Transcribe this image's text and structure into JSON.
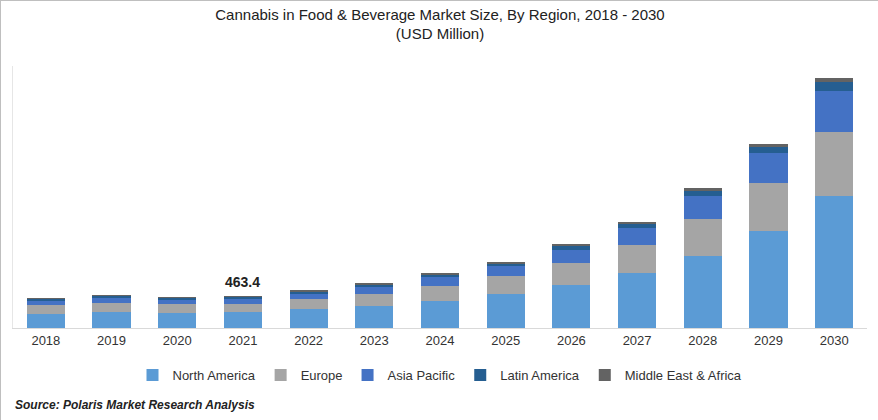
{
  "chart_data": {
    "type": "bar",
    "title": "Cannabis in Food & Beverage Market Size, By Region, 2018 - 2030",
    "subtitle": "(USD Million)",
    "categories": [
      "2018",
      "2019",
      "2020",
      "2021",
      "2022",
      "2023",
      "2024",
      "2025",
      "2026",
      "2027",
      "2028",
      "2029",
      "2030"
    ],
    "series": [
      {
        "name": "North America",
        "color": "#5b9bd5",
        "values": [
          203,
          232,
          217,
          225,
          275,
          320,
          390,
          490,
          620,
          800,
          1045,
          1405,
          1915
        ]
      },
      {
        "name": "Europe",
        "color": "#a5a5a5",
        "values": [
          130,
          130,
          130,
          130,
          145,
          175,
          215,
          260,
          320,
          405,
          535,
          695,
          925
        ]
      },
      {
        "name": "Asia Pacific",
        "color": "#4472c4",
        "values": [
          58,
          72,
          58,
          70,
          75,
          100,
          130,
          145,
          190,
          250,
          330,
          435,
          595
        ]
      },
      {
        "name": "Latin America",
        "color": "#255e91",
        "values": [
          29,
          29,
          29,
          25,
          34,
          35,
          40,
          40,
          58,
          55,
          80,
          85,
          130
        ]
      },
      {
        "name": "Middle East & Africa",
        "color": "#636363",
        "values": [
          15,
          15,
          15,
          13.4,
          22,
          22,
          22,
          22,
          30,
          27,
          40,
          47,
          60
        ]
      }
    ],
    "annotations": [
      {
        "x": "2021",
        "text": "463.4"
      }
    ],
    "source": "Source: Polaris Market Research Analysis",
    "ylim": [
      0,
      3800
    ],
    "yticks": [],
    "stacked": true,
    "grid": false,
    "legend": "bottom",
    "tick_labels": "x",
    "data_labels": false
  }
}
